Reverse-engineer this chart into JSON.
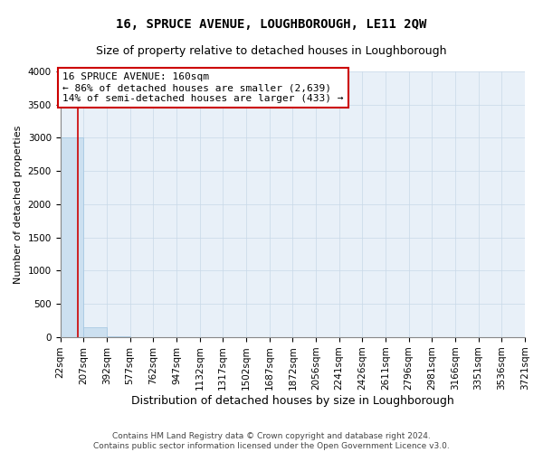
{
  "title": "16, SPRUCE AVENUE, LOUGHBOROUGH, LE11 2QW",
  "subtitle": "Size of property relative to detached houses in Loughborough",
  "xlabel": "Distribution of detached houses by size in Loughborough",
  "ylabel": "Number of detached properties",
  "footer_line1": "Contains HM Land Registry data © Crown copyright and database right 2024.",
  "footer_line2": "Contains public sector information licensed under the Open Government Licence v3.0.",
  "property_size": 160,
  "annotation_line1": "16 SPRUCE AVENUE: 160sqm",
  "annotation_line2": "← 86% of detached houses are smaller (2,639)",
  "annotation_line3": "14% of semi-detached houses are larger (433) →",
  "bar_edges": [
    22,
    207,
    392,
    577,
    762,
    947,
    1132,
    1317,
    1502,
    1687,
    1872,
    2056,
    2241,
    2426,
    2611,
    2796,
    2981,
    3166,
    3351,
    3536,
    3721
  ],
  "bar_heights": [
    3000,
    150,
    10,
    5,
    3,
    2,
    2,
    1,
    1,
    1,
    1,
    1,
    1,
    1,
    1,
    1,
    1,
    1,
    1,
    1
  ],
  "bar_color": "#cce0f0",
  "bar_edge_color": "#a0c4e0",
  "red_line_x": 160,
  "red_line_color": "#cc0000",
  "annotation_box_color": "#cc0000",
  "ylim": [
    0,
    4000
  ],
  "yticks": [
    0,
    500,
    1000,
    1500,
    2000,
    2500,
    3000,
    3500,
    4000
  ],
  "grid_color": "#c8d8e8",
  "bg_color": "#e8f0f8",
  "title_fontsize": 10,
  "subtitle_fontsize": 9,
  "axis_label_fontsize": 9,
  "ylabel_fontsize": 8,
  "tick_label_fontsize": 7.5,
  "annotation_fontsize": 8,
  "footer_fontsize": 6.5
}
